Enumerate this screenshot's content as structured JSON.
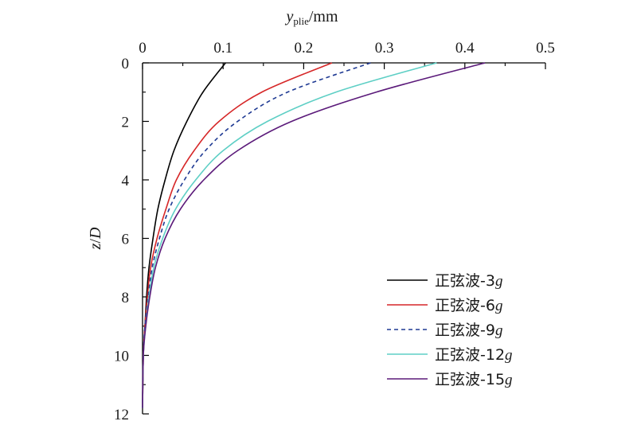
{
  "chart_data": {
    "type": "line",
    "xlabel": {
      "main": "y",
      "sub": "plie",
      "unit": "/mm"
    },
    "ylabel": {
      "italic_part": "z",
      "rest": "/",
      "italic_part2": "D"
    },
    "xlim": [
      0,
      0.5
    ],
    "ylim": [
      0,
      12
    ],
    "y_inverted": true,
    "x_axis_position": "top",
    "x_ticks": [
      0,
      0.1,
      0.2,
      0.3,
      0.4,
      0.5
    ],
    "x_tick_labels": [
      "0",
      "0.1",
      "0.2",
      "0.3",
      "0.4",
      "0.5"
    ],
    "y_ticks": [
      0,
      2,
      4,
      6,
      8,
      10,
      12
    ],
    "y_tick_labels": [
      "0",
      "2",
      "4",
      "6",
      "8",
      "10",
      "12"
    ],
    "grid": false,
    "legend_position": "bottom-right",
    "series": [
      {
        "name": "正弦波-3g",
        "prefix": "正弦波-",
        "amp": "3",
        "unit": "g",
        "color": "#000000",
        "dash": "solid",
        "x": [
          0.103,
          0.075,
          0.055,
          0.039,
          0.028,
          0.019,
          0.013,
          0.008,
          0.005,
          0.003,
          0.001,
          0.0
        ],
        "y": [
          0,
          1,
          2,
          3,
          4,
          5,
          6,
          7,
          8,
          9,
          10,
          11.8
        ]
      },
      {
        "name": "正弦波-6g",
        "prefix": "正弦波-",
        "amp": "6",
        "unit": "g",
        "color": "#d62728",
        "dash": "solid",
        "x": [
          0.235,
          0.148,
          0.095,
          0.064,
          0.042,
          0.029,
          0.018,
          0.01,
          0.006,
          0.003,
          0.001,
          0.0
        ],
        "y": [
          0,
          1,
          2,
          3,
          4,
          5,
          6,
          7,
          8,
          9,
          10,
          11.8
        ]
      },
      {
        "name": "正弦波-9g",
        "prefix": "正弦波-",
        "amp": "9",
        "unit": "g",
        "color": "#1f3a93",
        "dash": "dashed",
        "x": [
          0.283,
          0.18,
          0.118,
          0.078,
          0.052,
          0.033,
          0.021,
          0.012,
          0.007,
          0.003,
          0.001,
          0.0
        ],
        "y": [
          0,
          1,
          2,
          3,
          4,
          5,
          6,
          7,
          8,
          9,
          10,
          11.8
        ]
      },
      {
        "name": "正弦波-12g",
        "prefix": "正弦波-",
        "amp": "12",
        "unit": "g",
        "color": "#5ecfc5",
        "dash": "solid",
        "x": [
          0.365,
          0.24,
          0.155,
          0.1,
          0.066,
          0.041,
          0.025,
          0.014,
          0.008,
          0.004,
          0.001,
          0.0
        ],
        "y": [
          0,
          1,
          2,
          3,
          4,
          5,
          6,
          7,
          8,
          9,
          10,
          11.8
        ]
      },
      {
        "name": "正弦波-15g",
        "prefix": "正弦波-",
        "amp": "15",
        "unit": "g",
        "color": "#5b1a7a",
        "dash": "solid",
        "x": [
          0.425,
          0.29,
          0.185,
          0.118,
          0.076,
          0.047,
          0.028,
          0.016,
          0.009,
          0.004,
          0.001,
          0.0
        ],
        "y": [
          0,
          1,
          2,
          3,
          4,
          5,
          6,
          7,
          8,
          9,
          10,
          11.8
        ]
      }
    ]
  }
}
